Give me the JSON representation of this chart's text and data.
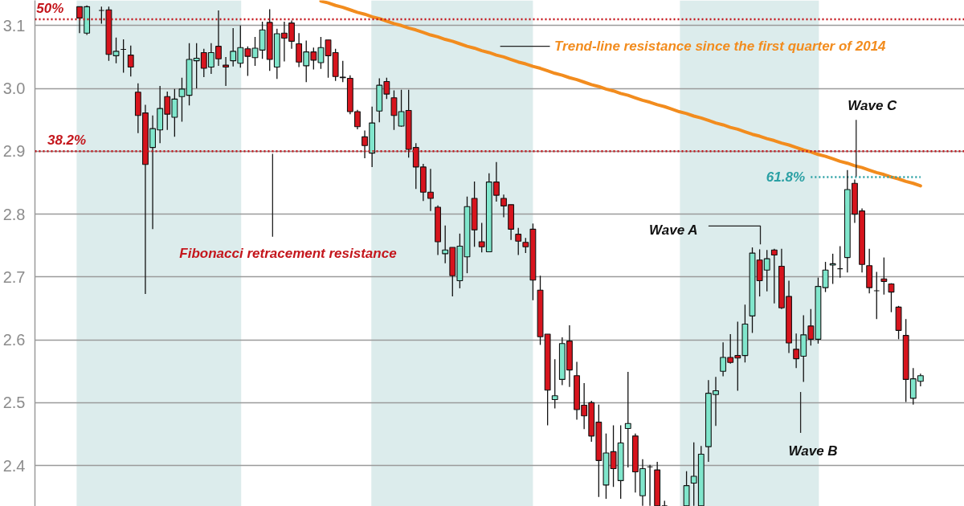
{
  "chart_data": {
    "type": "candlestick",
    "categories": [
      null,
      null,
      null,
      null,
      null,
      null,
      null,
      null,
      null,
      null,
      null,
      null,
      null,
      null,
      null,
      null,
      null,
      null,
      null,
      null,
      null,
      null,
      null,
      null,
      null,
      null,
      null,
      null,
      null,
      null,
      null,
      null,
      null,
      null,
      null,
      null,
      null,
      null,
      null,
      null,
      null,
      null,
      null,
      null,
      null,
      null,
      null,
      null,
      null,
      null,
      null,
      null,
      null,
      null,
      null,
      null,
      null,
      null,
      null,
      null,
      null,
      null,
      null,
      null,
      null,
      null,
      null,
      null,
      null,
      null,
      null,
      null,
      null,
      null,
      null,
      null,
      null,
      null,
      null,
      null,
      null,
      null,
      null,
      null,
      null,
      null,
      null,
      null,
      null,
      null,
      null,
      null,
      null,
      null,
      null,
      null,
      null,
      null,
      null,
      null,
      null,
      null,
      null,
      null,
      null,
      null,
      null,
      null,
      null,
      null,
      null,
      null,
      null,
      null,
      null,
      null
    ],
    "ohlc": [
      [
        3.13,
        3.13,
        3.088,
        3.112
      ],
      [
        3.088,
        3.132,
        3.085,
        3.13
      ],
      null,
      [
        3.124,
        3.13,
        3.103,
        3.124
      ],
      [
        3.125,
        3.13,
        3.044,
        3.054
      ],
      [
        3.052,
        3.081,
        3.04,
        3.059
      ],
      [
        3.062,
        3.078,
        3.025,
        3.062
      ],
      [
        3.053,
        3.068,
        3.019,
        3.034
      ],
      [
        2.994,
        3.008,
        2.929,
        2.957
      ],
      [
        2.961,
        2.974,
        2.673,
        2.879
      ],
      [
        2.906,
        2.957,
        2.776,
        2.936
      ],
      [
        2.934,
        3.004,
        2.913,
        2.968
      ],
      [
        2.987,
        2.995,
        2.934,
        2.959
      ],
      [
        2.954,
        2.999,
        2.923,
        2.983
      ],
      [
        2.987,
        3.017,
        2.947,
        2.999
      ],
      [
        2.989,
        3.072,
        2.973,
        3.046
      ],
      [
        3.044,
        3.072,
        3.0,
        3.048
      ],
      [
        3.057,
        3.063,
        3.018,
        3.032
      ],
      [
        3.034,
        3.072,
        3.023,
        3.057
      ],
      [
        3.067,
        3.124,
        3.036,
        3.047
      ],
      [
        3.037,
        3.05,
        3.004,
        3.034
      ],
      [
        3.044,
        3.096,
        3.035,
        3.059
      ],
      [
        3.04,
        3.1,
        3.033,
        3.065
      ],
      [
        3.063,
        3.067,
        3.02,
        3.051
      ],
      [
        3.049,
        3.082,
        3.036,
        3.064
      ],
      [
        3.061,
        3.106,
        3.047,
        3.093
      ],
      [
        3.105,
        3.126,
        3.028,
        3.046
      ],
      [
        3.034,
        3.095,
        3.015,
        3.087
      ],
      [
        3.088,
        3.106,
        3.043,
        3.08
      ],
      [
        3.104,
        3.108,
        3.063,
        3.075
      ],
      [
        3.071,
        3.088,
        3.034,
        3.042
      ],
      [
        3.036,
        3.076,
        3.01,
        3.058
      ],
      [
        3.058,
        3.065,
        3.03,
        3.045
      ],
      [
        3.041,
        3.082,
        3.031,
        3.065
      ],
      [
        3.077,
        3.077,
        3.017,
        3.052
      ],
      [
        3.057,
        3.063,
        3.012,
        3.019
      ],
      [
        3.018,
        3.044,
        3.01,
        3.017
      ],
      [
        3.016,
        3.021,
        2.959,
        2.963
      ],
      [
        2.963,
        2.966,
        2.935,
        2.939
      ],
      [
        2.923,
        2.933,
        2.889,
        2.909
      ],
      [
        2.897,
        2.971,
        2.875,
        2.945
      ],
      [
        2.964,
        3.016,
        2.946,
        3.005
      ],
      [
        3.011,
        3.017,
        2.983,
        2.991
      ],
      [
        2.985,
        2.997,
        2.934,
        2.957
      ],
      [
        2.94,
        2.998,
        2.939,
        2.963
      ],
      [
        2.965,
        2.998,
        2.89,
        2.903
      ],
      [
        2.906,
        2.913,
        2.84,
        2.875
      ],
      [
        2.875,
        2.88,
        2.821,
        2.835
      ],
      [
        2.835,
        2.872,
        2.805,
        2.825
      ],
      [
        2.811,
        2.814,
        2.735,
        2.756
      ],
      [
        2.737,
        2.782,
        2.722,
        2.743
      ],
      [
        2.747,
        2.747,
        2.669,
        2.702
      ],
      [
        2.694,
        2.769,
        2.682,
        2.749
      ],
      [
        2.732,
        2.828,
        2.706,
        2.812
      ],
      [
        2.825,
        2.852,
        2.748,
        2.775
      ],
      [
        2.756,
        2.786,
        2.739,
        2.748
      ],
      [
        2.74,
        2.865,
        2.74,
        2.851
      ],
      [
        2.851,
        2.883,
        2.82,
        2.83
      ],
      [
        2.825,
        2.831,
        2.795,
        2.813
      ],
      [
        2.815,
        2.815,
        2.759,
        2.776
      ],
      [
        2.768,
        2.778,
        2.735,
        2.757
      ],
      [
        2.755,
        2.762,
        2.738,
        2.748
      ],
      [
        2.776,
        2.785,
        2.663,
        2.695
      ],
      [
        2.679,
        2.702,
        2.592,
        2.605
      ],
      [
        2.609,
        2.609,
        2.464,
        2.52
      ],
      [
        2.505,
        2.569,
        2.491,
        2.511
      ],
      [
        2.537,
        2.604,
        2.528,
        2.594
      ],
      [
        2.598,
        2.623,
        2.525,
        2.552
      ],
      [
        2.543,
        2.565,
        2.473,
        2.489
      ],
      [
        2.496,
        2.531,
        2.458,
        2.479
      ],
      [
        2.5,
        2.503,
        2.438,
        2.447
      ],
      [
        2.469,
        2.497,
        2.35,
        2.408
      ],
      [
        2.369,
        2.451,
        2.347,
        2.42
      ],
      [
        2.422,
        2.464,
        2.366,
        2.395
      ],
      [
        2.376,
        2.464,
        2.347,
        2.436
      ],
      [
        2.459,
        2.549,
        2.397,
        2.467
      ],
      [
        2.447,
        2.451,
        2.357,
        2.39
      ],
      [
        2.352,
        2.41,
        2.336,
        2.395
      ],
      [
        2.398,
        2.401,
        2.336,
        2.398
      ],
      [
        2.393,
        2.406,
        2.336,
        2.336
      ],
      [
        2.336,
        2.344,
        2.336,
        2.336
      ],
      null,
      null,
      [
        2.336,
        2.391,
        2.336,
        2.368
      ],
      [
        2.372,
        2.437,
        2.336,
        2.383
      ],
      [
        2.336,
        2.431,
        2.336,
        2.418
      ],
      [
        2.43,
        2.536,
        2.406,
        2.515
      ],
      [
        2.513,
        2.541,
        2.463,
        2.519
      ],
      [
        2.55,
        2.596,
        2.542,
        2.572
      ],
      [
        2.572,
        2.609,
        2.562,
        2.564
      ],
      [
        2.575,
        2.629,
        2.519,
        2.571
      ],
      [
        2.575,
        2.656,
        2.564,
        2.625
      ],
      [
        2.638,
        2.747,
        2.611,
        2.738
      ],
      [
        2.727,
        2.744,
        2.669,
        2.694
      ],
      [
        2.711,
        2.743,
        2.677,
        2.729
      ],
      [
        2.743,
        2.745,
        2.658,
        2.735
      ],
      [
        2.717,
        2.745,
        2.649,
        2.651
      ],
      [
        2.669,
        2.694,
        2.579,
        2.595
      ],
      [
        2.585,
        2.61,
        2.555,
        2.57
      ],
      [
        2.574,
        2.639,
        2.533,
        2.608
      ],
      [
        2.622,
        2.649,
        2.591,
        2.601
      ],
      [
        2.601,
        2.699,
        2.594,
        2.685
      ],
      [
        2.683,
        2.724,
        2.676,
        2.711
      ],
      [
        2.719,
        2.737,
        2.689,
        2.721
      ],
      [
        2.713,
        2.749,
        2.699,
        2.713
      ],
      [
        2.731,
        2.87,
        2.707,
        2.839
      ],
      [
        2.849,
        2.855,
        2.786,
        2.8
      ],
      [
        2.805,
        2.809,
        2.707,
        2.72
      ],
      [
        2.718,
        2.745,
        2.674,
        2.683
      ],
      [
        2.678,
        2.708,
        2.633,
        2.678
      ],
      [
        2.697,
        2.731,
        2.672,
        2.693
      ],
      [
        2.689,
        2.69,
        2.644,
        2.676
      ],
      [
        2.652,
        2.654,
        2.601,
        2.615
      ],
      [
        2.607,
        2.633,
        2.501,
        2.537
      ],
      [
        2.507,
        2.555,
        2.497,
        2.538
      ],
      [
        2.534,
        2.546,
        2.526,
        2.543
      ]
    ],
    "colors": [
      "#d7141d",
      "#80e6cc",
      null,
      "#111111",
      "#d7141d",
      "#80e6cc",
      "#111111",
      "#d7141d",
      "#d7141d",
      "#d7141d",
      "#80e6cc",
      "#80e6cc",
      "#d7141d",
      "#80e6cc",
      "#80e6cc",
      "#80e6cc",
      "#80e6cc",
      "#d7141d",
      "#80e6cc",
      "#d7141d",
      "#d7141d",
      "#80e6cc",
      "#80e6cc",
      "#d7141d",
      "#80e6cc",
      "#80e6cc",
      "#d7141d",
      "#80e6cc",
      "#d7141d",
      "#d7141d",
      "#d7141d",
      "#80e6cc",
      "#d7141d",
      "#80e6cc",
      "#d7141d",
      "#d7141d",
      "#d7141d",
      "#d7141d",
      "#d7141d",
      "#d7141d",
      "#80e6cc",
      "#80e6cc",
      "#d7141d",
      "#d7141d",
      "#80e6cc",
      "#d7141d",
      "#d7141d",
      "#d7141d",
      "#d7141d",
      "#d7141d",
      "#80e6cc",
      "#d7141d",
      "#80e6cc",
      "#80e6cc",
      "#d7141d",
      "#d7141d",
      "#80e6cc",
      "#d7141d",
      "#d7141d",
      "#d7141d",
      "#d7141d",
      "#d7141d",
      "#d7141d",
      "#d7141d",
      "#d7141d",
      "#80e6cc",
      "#80e6cc",
      "#d7141d",
      "#d7141d",
      "#d7141d",
      "#d7141d",
      "#d7141d",
      "#80e6cc",
      "#d7141d",
      "#80e6cc",
      "#80e6cc",
      "#d7141d",
      "#80e6cc",
      "#111111",
      "#d7141d",
      "#111111",
      null,
      null,
      "#80e6cc",
      "#80e6cc",
      "#80e6cc",
      "#80e6cc",
      "#80e6cc",
      "#80e6cc",
      "#d7141d",
      "#d7141d",
      "#80e6cc",
      "#80e6cc",
      "#d7141d",
      "#80e6cc",
      "#d7141d",
      "#d7141d",
      "#d7141d",
      "#d7141d",
      "#80e6cc",
      "#d7141d",
      "#80e6cc",
      "#80e6cc",
      "#80e6cc",
      "#111111",
      "#80e6cc",
      "#d7141d",
      "#d7141d",
      "#d7141d",
      "#111111",
      "#d7141d",
      "#d7141d",
      "#d7141d",
      "#d7141d",
      "#80e6cc",
      "#80e6cc"
    ],
    "series": [
      {
        "type": "line",
        "name": "Trend-line resistance since the first quarter of 2014",
        "color": "#f28c1e",
        "values": [
          null,
          null,
          null,
          null,
          null,
          null,
          null,
          null,
          null,
          null,
          null,
          null,
          null,
          null,
          null,
          null,
          null,
          null,
          null,
          null,
          null,
          null,
          null,
          null,
          null,
          null,
          null,
          null,
          null,
          null,
          null,
          null,
          null,
          3.139,
          3.136,
          3.132,
          3.129,
          3.125,
          3.121,
          3.118,
          3.114,
          3.111,
          3.107,
          3.103,
          3.1,
          3.096,
          3.093,
          3.089,
          3.085,
          3.082,
          3.078,
          3.075,
          3.071,
          3.067,
          3.064,
          3.06,
          3.057,
          3.053,
          3.05,
          3.046,
          3.042,
          3.039,
          3.035,
          3.032,
          3.028,
          3.024,
          3.021,
          3.017,
          3.014,
          3.01,
          3.006,
          3.003,
          2.999,
          2.996,
          2.992,
          2.989,
          2.985,
          2.981,
          2.978,
          2.974,
          2.971,
          2.967,
          2.963,
          2.96,
          2.956,
          2.953,
          2.949,
          2.945,
          2.942,
          2.938,
          2.935,
          2.931,
          2.927,
          2.924,
          2.92,
          2.917,
          2.913,
          2.91,
          2.906,
          2.902,
          2.899,
          2.895,
          2.892,
          2.888,
          2.884,
          2.881,
          2.877,
          2.874,
          2.87,
          2.866,
          2.863,
          2.859,
          2.856,
          2.852,
          2.849,
          2.845
        ]
      },
      {
        "type": "line",
        "name": "61.8%",
        "color": "#2aa0a4",
        "line_style": "dotted",
        "values": [
          null,
          null,
          null,
          null,
          null,
          null,
          null,
          null,
          null,
          null,
          null,
          null,
          null,
          null,
          null,
          null,
          null,
          null,
          null,
          null,
          null,
          null,
          null,
          null,
          null,
          null,
          null,
          null,
          null,
          null,
          null,
          null,
          null,
          null,
          null,
          null,
          null,
          null,
          null,
          null,
          null,
          null,
          null,
          null,
          null,
          null,
          null,
          null,
          null,
          null,
          null,
          null,
          null,
          null,
          null,
          null,
          null,
          null,
          null,
          null,
          null,
          null,
          null,
          null,
          null,
          null,
          null,
          null,
          null,
          null,
          null,
          null,
          null,
          null,
          null,
          null,
          null,
          null,
          null,
          null,
          null,
          null,
          null,
          null,
          null,
          null,
          null,
          null,
          null,
          null,
          null,
          null,
          null,
          null,
          null,
          null,
          null,
          null,
          null,
          null,
          2.859,
          2.859,
          2.859,
          2.859,
          2.859,
          2.859,
          2.859,
          2.859,
          2.859,
          2.859,
          2.859,
          2.859,
          2.859,
          2.859,
          2.859,
          2.859
        ]
      }
    ],
    "ylim": [
      2.335,
      3.14
    ],
    "yticks": [
      2.4,
      2.5,
      2.6,
      2.7,
      2.8,
      2.9,
      {
        "value": 3,
        "label": "3.0"
      },
      3.1
    ],
    "grid": "y",
    "tick_labels": "y",
    "ref_lines": [
      {
        "axis": "y",
        "value": 3.11,
        "color": "#c4161c",
        "line_style": "dotted"
      },
      {
        "axis": "y",
        "value": 2.9,
        "color": "#c4161c",
        "line_style": "dotted"
      }
    ],
    "annotations": [
      {
        "text": "50%",
        "y": 3.11
      },
      {
        "text": "38.2%",
        "y": 2.9
      },
      "Fibonacci retracement resistance",
      "Wave A",
      "Wave B",
      "Wave C"
    ]
  }
}
